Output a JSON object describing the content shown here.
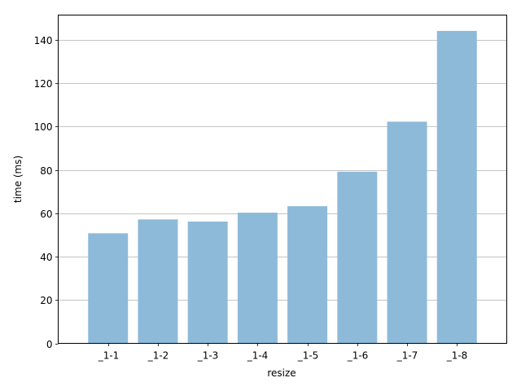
{
  "chart_data": {
    "type": "bar",
    "title": "",
    "xlabel": "resize",
    "ylabel": "time (ms)",
    "categories": [
      "_1-1",
      "_1-2",
      "_1-3",
      "_1-4",
      "_1-5",
      "_1-6",
      "_1-7",
      "_1-8"
    ],
    "values": [
      50.8,
      57.2,
      56.2,
      60.3,
      63.3,
      79.2,
      102.3,
      144.2
    ],
    "ylim": [
      0,
      151.5
    ],
    "yticks": [
      0,
      20,
      40,
      60,
      80,
      100,
      120,
      140
    ],
    "grid": "y-major",
    "bar_color": "#8ebad9",
    "grid_color": "#b0b0b0",
    "axis_color": "#000000"
  }
}
